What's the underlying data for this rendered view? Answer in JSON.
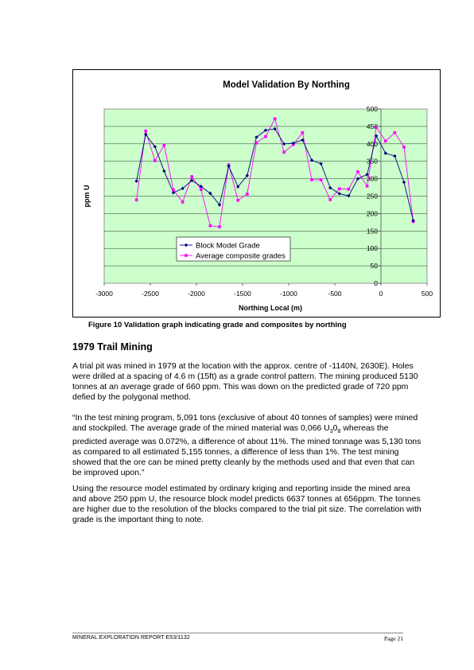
{
  "chart_data": {
    "type": "line",
    "title": "Model Validation By Northing",
    "xlabel": "Northing Local (m)",
    "ylabel": "ppm U",
    "xlim": [
      -3000,
      500
    ],
    "ylim": [
      0,
      500
    ],
    "xticks": [
      -3000,
      -2500,
      -2000,
      -1500,
      -1000,
      -500,
      0,
      500
    ],
    "yticks": [
      0,
      50,
      100,
      150,
      200,
      250,
      300,
      350,
      400,
      450,
      500
    ],
    "grid": true,
    "plot_background": "#ccffcc",
    "legend_position": "center-left",
    "series": [
      {
        "name": "Block Model Grade",
        "color": "#000080",
        "marker": "diamond",
        "points": [
          [
            -2650,
            293
          ],
          [
            -2550,
            427
          ],
          [
            -2450,
            392
          ],
          [
            -2350,
            322
          ],
          [
            -2250,
            260
          ],
          [
            -2150,
            272
          ],
          [
            -2050,
            295
          ],
          [
            -1950,
            278
          ],
          [
            -1850,
            258
          ],
          [
            -1750,
            225
          ],
          [
            -1650,
            336
          ],
          [
            -1550,
            277
          ],
          [
            -1450,
            309
          ],
          [
            -1350,
            419
          ],
          [
            -1250,
            439
          ],
          [
            -1150,
            443
          ],
          [
            -1050,
            400
          ],
          [
            -950,
            402
          ],
          [
            -850,
            411
          ],
          [
            -750,
            353
          ],
          [
            -650,
            343
          ],
          [
            -550,
            274
          ],
          [
            -450,
            257
          ],
          [
            -350,
            251
          ],
          [
            -250,
            300
          ],
          [
            -150,
            312
          ],
          [
            -50,
            423
          ],
          [
            50,
            373
          ],
          [
            150,
            365
          ],
          [
            250,
            290
          ],
          [
            350,
            180
          ]
        ]
      },
      {
        "name": "Average composite grades",
        "color": "#ff00ff",
        "marker": "square",
        "points": [
          [
            -2650,
            239
          ],
          [
            -2550,
            437
          ],
          [
            -2450,
            352
          ],
          [
            -2350,
            396
          ],
          [
            -2250,
            268
          ],
          [
            -2150,
            233
          ],
          [
            -2050,
            306
          ],
          [
            -1950,
            269
          ],
          [
            -1850,
            165
          ],
          [
            -1750,
            162
          ],
          [
            -1650,
            340
          ],
          [
            -1550,
            238
          ],
          [
            -1450,
            256
          ],
          [
            -1350,
            403
          ],
          [
            -1250,
            421
          ],
          [
            -1150,
            472
          ],
          [
            -1050,
            376
          ],
          [
            -950,
            398
          ],
          [
            -850,
            432
          ],
          [
            -750,
            297
          ],
          [
            -650,
            297
          ],
          [
            -550,
            240
          ],
          [
            -450,
            271
          ],
          [
            -350,
            270
          ],
          [
            -250,
            320
          ],
          [
            -150,
            279
          ],
          [
            -50,
            448
          ],
          [
            50,
            408
          ],
          [
            150,
            432
          ],
          [
            250,
            391
          ],
          [
            350,
            177
          ]
        ]
      }
    ]
  },
  "caption": "Figure 10 Validation graph indicating grade and composites by northing",
  "section_heading": "1979 Trail Mining",
  "paragraphs": {
    "p1": " A trial pit was mined in 1979 at the location with the approx. centre of   -1140N, 2630E). Holes were drilled at a spacing of 4.6 m (15ft) as a grade control pattern. The mining produced 5130 tonnes at an average grade of 660 ppm. This was down on the predicted grade of 720 ppm defied by the polygonal method.",
    "p2_a": "“In the test mining program, 5,091 tons (exclusive of about 40 tonnes of samples) were mined and stockpiled. The average grade of the mined material was 0,066 U",
    "p2_sub1": "3",
    "p2_mid": "0",
    "p2_sub2": "8",
    "p2_b": " whereas the predicted average was 0.072%, a difference of about 11%. The mined tonnage was 5,130 tons as compared to all estimated 5,155 tonnes, a difference of less than 1%. The test mining showed that the ore can be mined pretty cleanly by the methods used and that even that can be improved upon.”",
    "p3": "Using the resource model estimated by ordinary kriging and reporting inside the mined area and above 250 ppm U, the resource block model predicts 6637 tonnes at 656ppm. The tonnes are higher due to the resolution of the blocks compared to the trial pit size. The correlation with grade is the important thing to note."
  },
  "footer": {
    "left": "MINERAL EXPLORATION REPORT E53/1132",
    "right": "Page 21"
  }
}
